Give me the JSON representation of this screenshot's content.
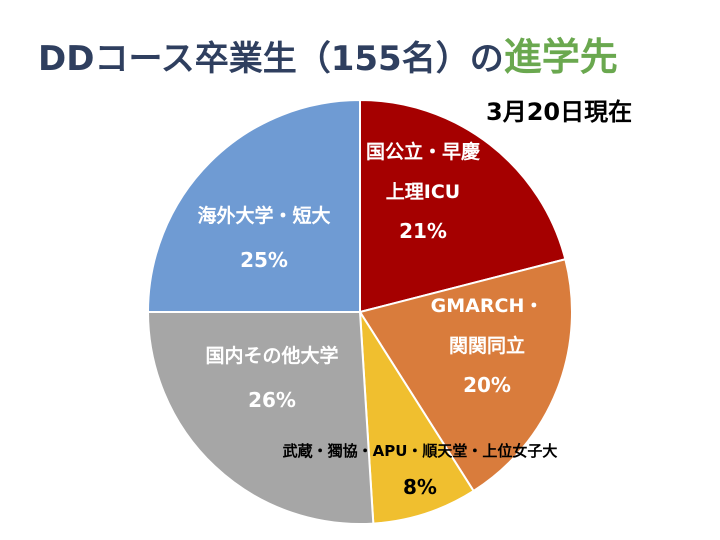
{
  "title": {
    "main": "DDコース卒業生（155名）の",
    "accent": "進学先",
    "accent_color": "#6aa84f",
    "main_color": "#2f3f5f"
  },
  "date_label": "3月20日現在",
  "chart_data": {
    "type": "pie",
    "title": "DDコース卒業生（155名）の進学先",
    "start_angle": "12 o'clock",
    "direction": "clockwise",
    "slices": [
      {
        "lines": [
          "国公立・早慶",
          "上理ICU"
        ],
        "percent_label": "21%",
        "value": 21,
        "color": "#a50000",
        "label_color": "#ffffff"
      },
      {
        "lines": [
          "GMARCH・",
          "関関同立"
        ],
        "percent_label": "20%",
        "value": 20,
        "color": "#d97c3c",
        "label_color": "#ffffff"
      },
      {
        "lines": [
          "武蔵・獨協・APU・順天堂・上位女子大"
        ],
        "percent_label": "8%",
        "value": 8,
        "color": "#f0bf2f",
        "label_color": "#000000"
      },
      {
        "lines": [
          "国内その他大学"
        ],
        "percent_label": "26%",
        "value": 26,
        "color": "#a6a6a6",
        "label_color": "#ffffff"
      },
      {
        "lines": [
          "海外大学・短大"
        ],
        "percent_label": "25%",
        "value": 25,
        "color": "#6f9bd3",
        "label_color": "#ffffff"
      }
    ]
  }
}
